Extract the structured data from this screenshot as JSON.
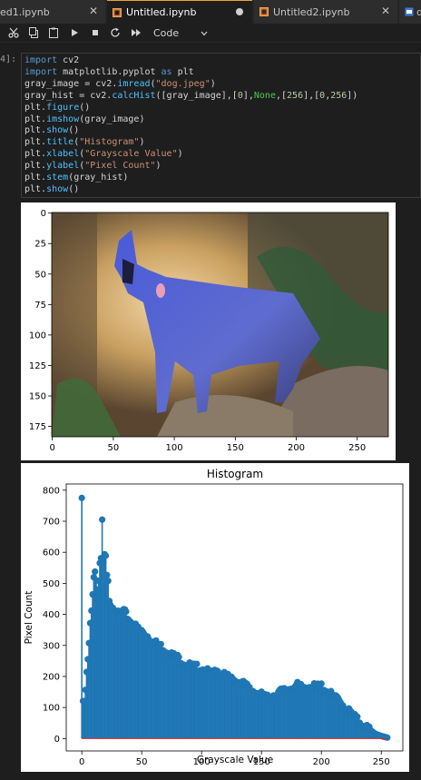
{
  "tabs": [
    {
      "label": "ed1.ipynb",
      "active": false
    },
    {
      "label": "Untitled.ipynb",
      "active": true,
      "dirty": true
    },
    {
      "label": "Untitled2.ipynb",
      "active": false
    },
    {
      "label": "d",
      "active": false
    }
  ],
  "toolbar": {
    "buttons": [
      "cut-icon",
      "copy-icon",
      "paste-icon",
      "run-icon",
      "stop-icon",
      "restart-icon",
      "run-all-icon"
    ],
    "cell_type": "Code"
  },
  "cell": {
    "prompt": "4]:",
    "code_lines": [
      "import cv2",
      "import matplotlib.pyplot as plt",
      "gray_image = cv2.imread(\"dog.jpeg\")",
      "gray_hist = cv2.calcHist([gray_image],[0],None,[256],[0,256])",
      "plt.figure()",
      "plt.imshow(gray_image)",
      "plt.show()",
      "plt.title(\"Histogram\")",
      "plt.xlabel(\"Grayscale Value\")",
      "plt.ylabel(\"Pixel Count\")",
      "plt.stem(gray_hist)",
      "plt.show()"
    ]
  },
  "image_output": {
    "xticks": [
      "0",
      "50",
      "100",
      "150",
      "200",
      "250"
    ],
    "yticks": [
      "0",
      "25",
      "50",
      "75",
      "100",
      "125",
      "150",
      "175"
    ]
  },
  "colors": {
    "stem": "#1f77b4",
    "baseline": "#d62728",
    "tab_accent": "#f0a030"
  },
  "chart_data": {
    "type": "stem",
    "title": "Histogram",
    "xlabel": "Grayscale Value",
    "ylabel": "Pixel Count",
    "xlim": [
      -13,
      268
    ],
    "ylim": [
      -40,
      820
    ],
    "xticks": [
      0,
      50,
      100,
      150,
      200,
      250
    ],
    "yticks": [
      0,
      100,
      200,
      300,
      400,
      500,
      600,
      700,
      800
    ],
    "envelope_points": [
      [
        0,
        775
      ],
      [
        1,
        110
      ],
      [
        2,
        120
      ],
      [
        3,
        150
      ],
      [
        4,
        210
      ],
      [
        5,
        250
      ],
      [
        6,
        300
      ],
      [
        7,
        370
      ],
      [
        8,
        420
      ],
      [
        9,
        470
      ],
      [
        10,
        520
      ],
      [
        11,
        540
      ],
      [
        12,
        520
      ],
      [
        13,
        480
      ],
      [
        14,
        510
      ],
      [
        15,
        560
      ],
      [
        16,
        570
      ],
      [
        17,
        700
      ],
      [
        18,
        560
      ],
      [
        19,
        590
      ],
      [
        20,
        580
      ],
      [
        21,
        520
      ],
      [
        22,
        500
      ],
      [
        23,
        450
      ],
      [
        25,
        430
      ],
      [
        28,
        420
      ],
      [
        30,
        400
      ],
      [
        35,
        410
      ],
      [
        40,
        380
      ],
      [
        45,
        360
      ],
      [
        50,
        345
      ],
      [
        55,
        330
      ],
      [
        60,
        310
      ],
      [
        65,
        300
      ],
      [
        70,
        285
      ],
      [
        75,
        270
      ],
      [
        80,
        260
      ],
      [
        85,
        245
      ],
      [
        90,
        235
      ],
      [
        95,
        230
      ],
      [
        100,
        225
      ],
      [
        105,
        215
      ],
      [
        110,
        205
      ],
      [
        113,
        230
      ],
      [
        115,
        210
      ],
      [
        120,
        200
      ],
      [
        125,
        190
      ],
      [
        130,
        185
      ],
      [
        135,
        175
      ],
      [
        140,
        160
      ],
      [
        145,
        150
      ],
      [
        150,
        140
      ],
      [
        155,
        130
      ],
      [
        160,
        140
      ],
      [
        165,
        150
      ],
      [
        170,
        155
      ],
      [
        175,
        165
      ],
      [
        180,
        170
      ],
      [
        183,
        165
      ],
      [
        185,
        165
      ],
      [
        190,
        170
      ],
      [
        195,
        165
      ],
      [
        200,
        170
      ],
      [
        205,
        150
      ],
      [
        210,
        135
      ],
      [
        215,
        120
      ],
      [
        220,
        100
      ],
      [
        225,
        80
      ],
      [
        230,
        60
      ],
      [
        235,
        45
      ],
      [
        240,
        30
      ],
      [
        245,
        15
      ],
      [
        250,
        8
      ],
      [
        255,
        3
      ]
    ]
  }
}
